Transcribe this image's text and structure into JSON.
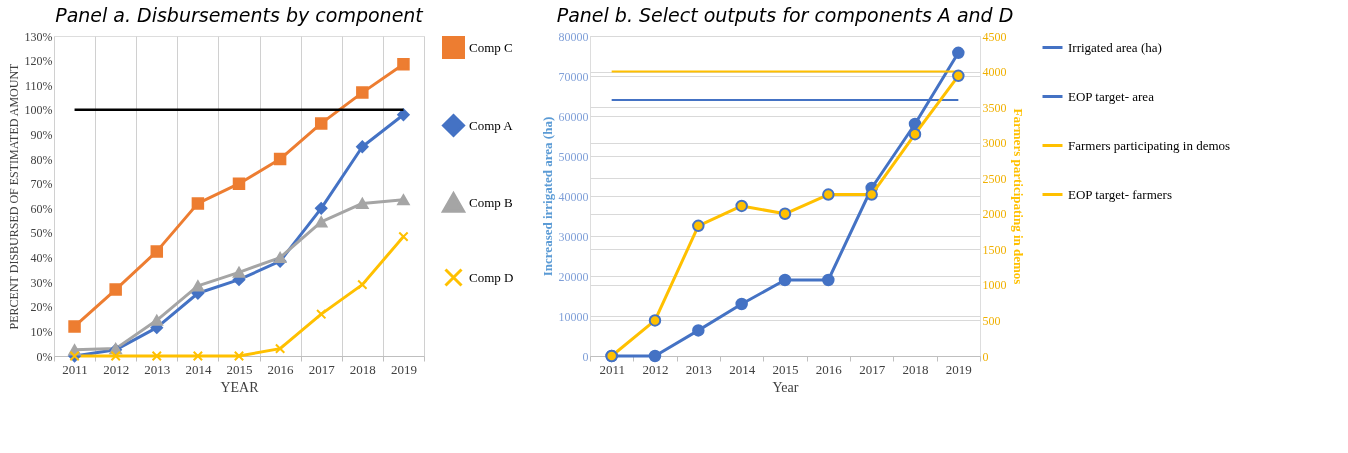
{
  "chart_data": [
    {
      "type": "line",
      "title": "Panel a. Disbursements by component",
      "xlabel": "YEAR",
      "ylabel": "PERCENT DISBURSED OF ESTIMATED AMOUNT",
      "categories": [
        "2011",
        "2012",
        "2013",
        "2014",
        "2015",
        "2016",
        "2017",
        "2018",
        "2019"
      ],
      "series": [
        {
          "name": "Comp C",
          "color": "#ed7d31",
          "marker": "square",
          "values": [
            12,
            27,
            42.5,
            62,
            70,
            80,
            94.5,
            107,
            118.5
          ]
        },
        {
          "name": "Comp A",
          "color": "#4472c4",
          "marker": "diamond",
          "values": [
            0,
            2.5,
            11.5,
            25.5,
            31,
            38.5,
            60,
            85,
            98
          ]
        },
        {
          "name": "Comp B",
          "color": "#a5a5a5",
          "marker": "triangle",
          "values": [
            2.5,
            3,
            14.5,
            28.5,
            34,
            40,
            54.5,
            62,
            63.5
          ]
        },
        {
          "name": "Comp D",
          "color": "#ffc000",
          "marker": "cross",
          "values": [
            0,
            0,
            0,
            0,
            0,
            3,
            17,
            29,
            48.5
          ]
        }
      ],
      "ylim": [
        0,
        130
      ],
      "yticks": [
        {
          "value": 0,
          "label": "0%"
        },
        {
          "value": 10,
          "label": "10%"
        },
        {
          "value": 20,
          "label": "20%"
        },
        {
          "value": 30,
          "label": "30%"
        },
        {
          "value": 40,
          "label": "40%"
        },
        {
          "value": 50,
          "label": "50%"
        },
        {
          "value": 60,
          "label": "60%"
        },
        {
          "value": 70,
          "label": "70%"
        },
        {
          "value": 80,
          "label": "80%"
        },
        {
          "value": 90,
          "label": "90%"
        },
        {
          "value": 100,
          "label": "100%"
        },
        {
          "value": 110,
          "label": "110%"
        },
        {
          "value": 120,
          "label": "120%"
        },
        {
          "value": 130,
          "label": "130%"
        }
      ],
      "ref_lines": [
        {
          "axis": "y",
          "value": 100,
          "color": "#000000"
        }
      ],
      "grid": "x",
      "legend": "right"
    },
    {
      "type": "line",
      "title": "Panel b. Select outputs for components A and D",
      "xlabel": "Year",
      "ylabel": "Increased irrigated area (ha)",
      "y2label": "Farmers participating in demos",
      "categories": [
        "2011",
        "2012",
        "2013",
        "2014",
        "2015",
        "2016",
        "2017",
        "2018",
        "2019"
      ],
      "series": [
        {
          "name": "Irrigated area (ha)",
          "color": "#4472c4",
          "marker": "circle",
          "values": [
            0,
            0,
            6400,
            13000,
            19000,
            19000,
            42000,
            58000,
            75800
          ]
        },
        {
          "name": "EOP target- area",
          "color": "#4472c4",
          "marker": "none",
          "values": [
            64000,
            64000,
            64000,
            64000,
            64000,
            64000,
            64000,
            64000,
            64000
          ]
        },
        {
          "name": "Farmers participating in demos",
          "color": "#ffc000",
          "marker": "circle",
          "axis": "y2",
          "values": [
            0,
            500,
            1830,
            2110,
            2000,
            2270,
            2270,
            3120,
            3940
          ]
        },
        {
          "name": "EOP target- farmers",
          "color": "#ffc000",
          "marker": "none",
          "axis": "y2",
          "values": [
            4000,
            4000,
            4000,
            4000,
            4000,
            4000,
            4000,
            4000,
            4000
          ]
        }
      ],
      "ylim": [
        0,
        80000
      ],
      "yticks": [
        0,
        10000,
        20000,
        30000,
        40000,
        50000,
        60000,
        70000,
        80000
      ],
      "y2lim": [
        0,
        4500
      ],
      "y2ticks": [
        0,
        500,
        1000,
        1500,
        2000,
        2500,
        3000,
        3500,
        4000,
        4500
      ],
      "grid": "y",
      "legend": "right"
    }
  ]
}
